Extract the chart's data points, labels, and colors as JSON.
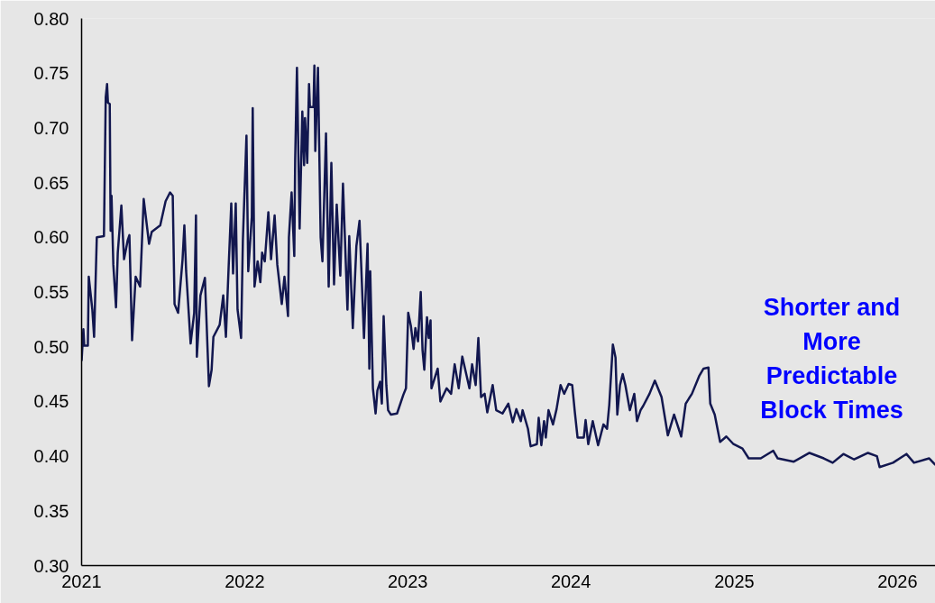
{
  "chart_data": {
    "type": "line",
    "x": [
      "2021-01-01",
      "2021-01-05",
      "2021-01-07",
      "2021-01-15",
      "2021-01-17",
      "2021-01-25",
      "2021-01-29",
      "2021-02-04",
      "2021-02-20",
      "2021-02-24",
      "2021-02-27",
      "2021-03-01",
      "2021-03-05",
      "2021-03-07",
      "2021-03-09",
      "2021-03-13",
      "2021-03-19",
      "2021-03-23",
      "2021-03-31",
      "2021-04-06",
      "2021-04-14",
      "2021-04-18",
      "2021-04-24",
      "2021-05-02",
      "2021-05-12",
      "2021-05-20",
      "2021-06-01",
      "2021-06-07",
      "2021-06-26",
      "2021-07-08",
      "2021-07-18",
      "2021-07-24",
      "2021-07-28",
      "2021-08-05",
      "2021-08-15",
      "2021-08-19",
      "2021-08-23",
      "2021-09-02",
      "2021-09-10",
      "2021-09-14",
      "2021-09-16",
      "2021-09-24",
      "2021-10-04",
      "2021-10-13",
      "2021-10-19",
      "2021-10-23",
      "2021-11-06",
      "2021-11-14",
      "2021-11-20",
      "2021-11-26",
      "2021-12-02",
      "2021-12-06",
      "2021-12-12",
      "2021-12-16",
      "2021-12-24",
      "2021-12-28",
      "2022-01-05",
      "2022-01-09",
      "2022-01-17",
      "2022-01-19",
      "2022-01-23",
      "2022-01-30",
      "2022-02-05",
      "2022-02-09",
      "2022-02-15",
      "2022-02-23",
      "2022-03-01",
      "2022-03-09",
      "2022-03-15",
      "2022-03-25",
      "2022-03-31",
      "2022-04-08",
      "2022-04-10",
      "2022-04-16",
      "2022-04-22",
      "2022-04-24",
      "2022-04-28",
      "2022-05-04",
      "2022-05-10",
      "2022-05-14",
      "2022-05-16",
      "2022-05-21",
      "2022-05-25",
      "2022-05-27",
      "2022-06-04",
      "2022-06-06",
      "2022-06-08",
      "2022-06-14",
      "2022-06-20",
      "2022-06-24",
      "2022-07-02",
      "2022-07-08",
      "2022-07-14",
      "2022-07-20",
      "2022-07-26",
      "2022-08-03",
      "2022-08-09",
      "2022-08-19",
      "2022-08-23",
      "2022-08-31",
      "2022-09-08",
      "2022-09-15",
      "2022-09-25",
      "2022-10-03",
      "2022-10-07",
      "2022-10-09",
      "2022-10-15",
      "2022-10-21",
      "2022-10-25",
      "2022-10-31",
      "2022-11-04",
      "2022-11-08",
      "2022-11-14",
      "2022-11-18",
      "2022-11-24",
      "2022-12-08",
      "2022-12-22",
      "2022-12-28",
      "2023-01-02",
      "2023-01-08",
      "2023-01-14",
      "2023-01-18",
      "2023-01-24",
      "2023-01-30",
      "2023-02-03",
      "2023-02-07",
      "2023-02-13",
      "2023-02-17",
      "2023-02-21",
      "2023-02-23",
      "2023-03-09",
      "2023-03-15",
      "2023-03-29",
      "2023-04-08",
      "2023-04-16",
      "2023-04-25",
      "2023-05-03",
      "2023-05-13",
      "2023-05-19",
      "2023-05-25",
      "2023-06-02",
      "2023-06-08",
      "2023-06-14",
      "2023-06-22",
      "2023-06-28",
      "2023-07-10",
      "2023-07-18",
      "2023-08-01",
      "2023-08-14",
      "2023-08-24",
      "2023-09-01",
      "2023-09-11",
      "2023-09-15",
      "2023-09-27",
      "2023-10-03",
      "2023-10-17",
      "2023-10-21",
      "2023-10-27",
      "2023-11-02",
      "2023-11-06",
      "2023-11-12",
      "2023-11-22",
      "2023-11-30",
      "2023-12-09",
      "2023-12-17",
      "2023-12-27",
      "2024-01-04",
      "2024-01-10",
      "2024-01-16",
      "2024-01-30",
      "2024-02-03",
      "2024-02-09",
      "2024-02-19",
      "2024-03-02",
      "2024-03-14",
      "2024-03-22",
      "2024-03-27",
      "2024-04-04",
      "2024-04-10",
      "2024-04-14",
      "2024-04-20",
      "2024-04-26",
      "2024-05-02",
      "2024-05-12",
      "2024-05-22",
      "2024-05-28",
      "2024-06-05",
      "2024-06-11",
      "2024-06-25",
      "2024-07-07",
      "2024-07-22",
      "2024-08-05",
      "2024-08-19",
      "2024-09-04",
      "2024-09-14",
      "2024-09-28",
      "2024-10-14",
      "2024-10-24",
      "2024-11-04",
      "2024-11-08",
      "2024-11-18",
      "2024-11-30",
      "2024-12-14",
      "2024-12-30",
      "2025-01-19",
      "2025-02-02",
      "2025-03-01",
      "2025-03-29",
      "2025-04-08",
      "2025-05-14",
      "2025-06-18",
      "2025-07-20",
      "2025-08-09",
      "2025-09-02",
      "2025-09-26",
      "2025-10-27",
      "2025-11-16",
      "2025-11-22",
      "2025-12-22",
      "2026-01-21",
      "2026-02-07",
      "2026-03-13",
      "2026-03-27"
    ],
    "series": [
      {
        "color": "#12174f",
        "values": [
          0.487,
          0.516,
          0.501,
          0.501,
          0.564,
          0.534,
          0.509,
          0.6,
          0.601,
          0.728,
          0.74,
          0.723,
          0.722,
          0.606,
          0.638,
          0.575,
          0.536,
          0.586,
          0.629,
          0.58,
          0.597,
          0.602,
          0.506,
          0.564,
          0.555,
          0.635,
          0.594,
          0.605,
          0.611,
          0.633,
          0.641,
          0.638,
          0.539,
          0.531,
          0.58,
          0.611,
          0.569,
          0.503,
          0.531,
          0.62,
          0.491,
          0.547,
          0.563,
          0.464,
          0.479,
          0.509,
          0.52,
          0.547,
          0.509,
          0.572,
          0.631,
          0.567,
          0.631,
          0.534,
          0.508,
          0.598,
          0.693,
          0.569,
          0.619,
          0.718,
          0.555,
          0.578,
          0.559,
          0.586,
          0.578,
          0.623,
          0.58,
          0.62,
          0.575,
          0.539,
          0.564,
          0.528,
          0.6,
          0.641,
          0.583,
          0.671,
          0.755,
          0.608,
          0.715,
          0.666,
          0.709,
          0.668,
          0.74,
          0.719,
          0.719,
          0.757,
          0.679,
          0.755,
          0.6,
          0.578,
          0.695,
          0.555,
          0.668,
          0.557,
          0.63,
          0.565,
          0.649,
          0.534,
          0.601,
          0.517,
          0.592,
          0.615,
          0.508,
          0.594,
          0.48,
          0.569,
          0.462,
          0.439,
          0.46,
          0.468,
          0.448,
          0.528,
          0.465,
          0.442,
          0.438,
          0.439,
          0.456,
          0.462,
          0.531,
          0.519,
          0.498,
          0.517,
          0.505,
          0.55,
          0.497,
          0.479,
          0.527,
          0.508,
          0.524,
          0.462,
          0.48,
          0.45,
          0.462,
          0.457,
          0.484,
          0.462,
          0.491,
          0.473,
          0.462,
          0.484,
          0.465,
          0.508,
          0.454,
          0.457,
          0.44,
          0.465,
          0.442,
          0.439,
          0.448,
          0.431,
          0.443,
          0.432,
          0.442,
          0.425,
          0.409,
          0.411,
          0.435,
          0.41,
          0.432,
          0.417,
          0.442,
          0.429,
          0.443,
          0.465,
          0.457,
          0.466,
          0.465,
          0.44,
          0.417,
          0.417,
          0.433,
          0.411,
          0.432,
          0.41,
          0.429,
          0.425,
          0.447,
          0.502,
          0.49,
          0.438,
          0.465,
          0.475,
          0.465,
          0.442,
          0.457,
          0.432,
          0.442,
          0.446,
          0.457,
          0.469,
          0.454,
          0.419,
          0.438,
          0.418,
          0.448,
          0.457,
          0.473,
          0.48,
          0.481,
          0.448,
          0.438,
          0.413,
          0.418,
          0.411,
          0.407,
          0.398,
          0.398,
          0.405,
          0.398,
          0.395,
          0.403,
          0.398,
          0.394,
          0.402,
          0.397,
          0.403,
          0.4,
          0.39,
          0.394,
          0.402,
          0.394,
          0.398,
          0.392
        ]
      }
    ],
    "xlim": [
      "2021-01-01",
      "2026-03-27"
    ],
    "xticks": [
      "2021",
      "2022",
      "2023",
      "2024",
      "2025",
      "2026"
    ],
    "ylim": [
      0.3,
      0.8
    ],
    "yticks": [
      {
        "value": 0.3,
        "label": "0.30"
      },
      {
        "value": 0.35,
        "label": "0.35"
      },
      {
        "value": 0.4,
        "label": "0.40"
      },
      {
        "value": 0.45,
        "label": "0.45"
      },
      {
        "value": 0.5,
        "label": "0.50"
      },
      {
        "value": 0.55,
        "label": "0.55"
      },
      {
        "value": 0.6,
        "label": "0.60"
      },
      {
        "value": 0.65,
        "label": "0.65"
      },
      {
        "value": 0.7,
        "label": "0.70"
      },
      {
        "value": 0.75,
        "label": "0.75"
      },
      {
        "value": 0.8,
        "label": "0.80"
      }
    ],
    "annotations": [
      "Shorter and\nMore\nPredictable\nBlock Times"
    ],
    "line_style": "solid"
  }
}
